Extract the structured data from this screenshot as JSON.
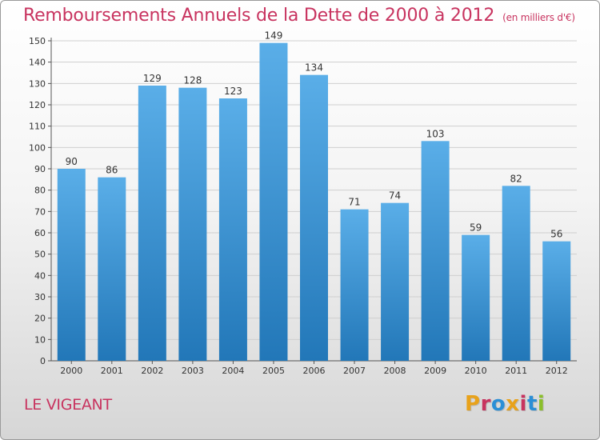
{
  "header": {
    "title": "Remboursements Annuels de la Dette de 2000 à 2012",
    "unit": "(en milliers d'€)"
  },
  "footer": {
    "commune": "LE VIGEANT",
    "logo_text": "Proxiti",
    "logo_colors": [
      "#e8a21b",
      "#c8335f",
      "#2b8fd6",
      "#e8a21b",
      "#c8335f",
      "#2b8fd6",
      "#8bbf2a"
    ]
  },
  "colors": {
    "accent": "#c8335f",
    "bar_top": "#5aaee8",
    "bar_bottom": "#2277b8",
    "grid": "#cfcfcf"
  },
  "chart_data": {
    "type": "bar",
    "title": "Remboursements Annuels de la Dette de 2000 à 2012",
    "subtitle": "(en milliers d'€)",
    "xlabel": "",
    "ylabel": "",
    "categories": [
      "2000",
      "2001",
      "2002",
      "2003",
      "2004",
      "2005",
      "2006",
      "2007",
      "2008",
      "2009",
      "2010",
      "2011",
      "2012"
    ],
    "values": [
      90,
      86,
      129,
      128,
      123,
      149,
      134,
      71,
      74,
      103,
      59,
      82,
      56
    ],
    "ylim": [
      0,
      150
    ],
    "yticks": [
      0,
      10,
      20,
      30,
      40,
      50,
      60,
      70,
      80,
      90,
      100,
      110,
      120,
      130,
      140,
      150
    ],
    "grid": true,
    "data_labels": true
  }
}
